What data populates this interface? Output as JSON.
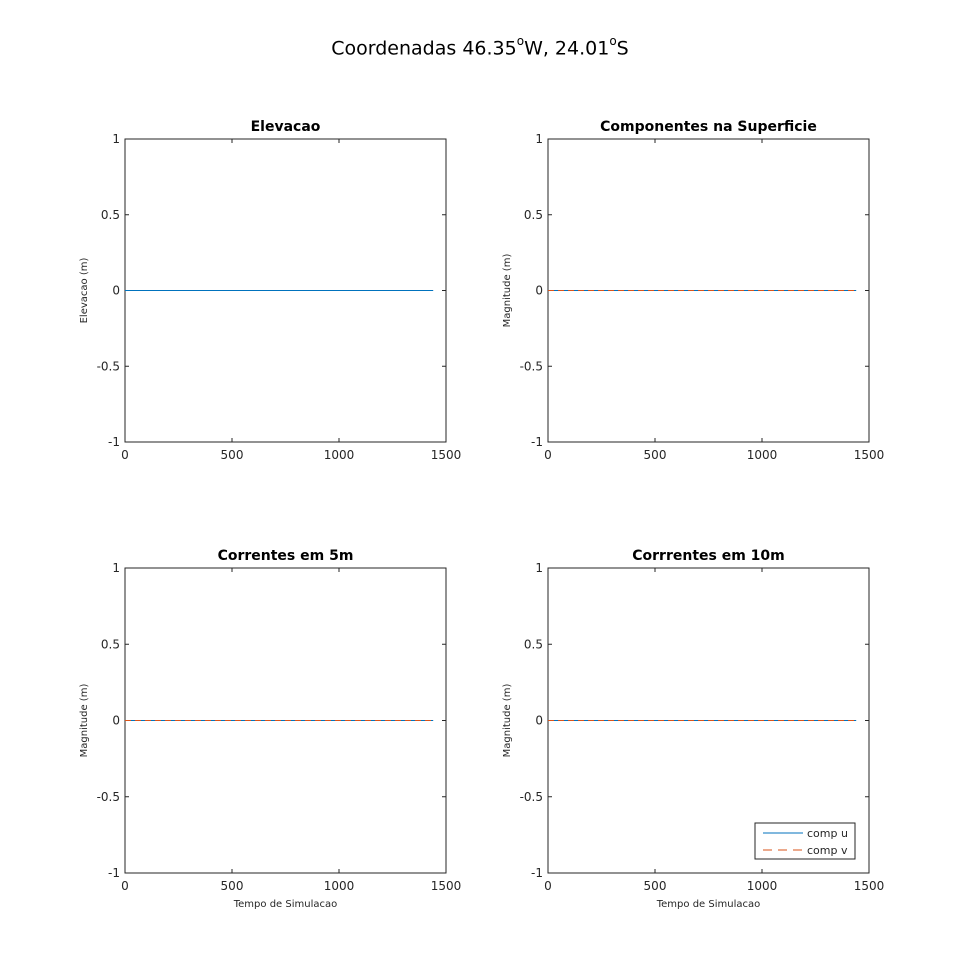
{
  "figure": {
    "title_prefix": "Coordenadas 46.35",
    "title_lon_unit": "W, 24.01",
    "title_lat_unit": "S",
    "title_degree": "o"
  },
  "colors": {
    "series_u": "#0072bd",
    "series_v": "#d95319",
    "axes": "#262626"
  },
  "chart_data": [
    {
      "type": "line",
      "title": "Elevacao",
      "xlabel": "",
      "ylabel": "Elevacao (m)",
      "xlim": [
        0,
        1500
      ],
      "ylim": [
        -1,
        1
      ],
      "xticks": [
        0,
        500,
        1000,
        1500
      ],
      "yticks": [
        -1,
        -0.5,
        0,
        0.5,
        1
      ],
      "series": [
        {
          "style": "solid",
          "color": "#0072bd",
          "x": [
            0,
            1440
          ],
          "y": [
            0,
            0
          ]
        }
      ]
    },
    {
      "type": "line",
      "title": "Componentes na Superficie",
      "xlabel": "",
      "ylabel": "Magnitude (m)",
      "xlim": [
        0,
        1500
      ],
      "ylim": [
        -1,
        1
      ],
      "xticks": [
        0,
        500,
        1000,
        1500
      ],
      "yticks": [
        -1,
        -0.5,
        0,
        0.5,
        1
      ],
      "series": [
        {
          "style": "solid",
          "color": "#0072bd",
          "x": [
            0,
            1440
          ],
          "y": [
            0,
            0
          ]
        },
        {
          "style": "dashed",
          "color": "#d95319",
          "x": [
            0,
            1440
          ],
          "y": [
            0,
            0
          ]
        }
      ]
    },
    {
      "type": "line",
      "title": "Correntes em 5m",
      "xlabel": "Tempo de Simulacao",
      "ylabel": "Magnitude (m)",
      "xlim": [
        0,
        1500
      ],
      "ylim": [
        -1,
        1
      ],
      "xticks": [
        0,
        500,
        1000,
        1500
      ],
      "yticks": [
        -1,
        -0.5,
        0,
        0.5,
        1
      ],
      "series": [
        {
          "style": "solid",
          "color": "#0072bd",
          "x": [
            0,
            1440
          ],
          "y": [
            0,
            0
          ]
        },
        {
          "style": "dashed",
          "color": "#d95319",
          "x": [
            0,
            1440
          ],
          "y": [
            0,
            0
          ]
        }
      ]
    },
    {
      "type": "line",
      "title": "Corrrentes em 10m",
      "xlabel": "Tempo de Simulacao",
      "ylabel": "Magnitude (m)",
      "xlim": [
        0,
        1500
      ],
      "ylim": [
        -1,
        1
      ],
      "xticks": [
        0,
        500,
        1000,
        1500
      ],
      "yticks": [
        -1,
        -0.5,
        0,
        0.5,
        1
      ],
      "legend": {
        "placement": "bottom-right",
        "entries": [
          "comp u",
          "comp v"
        ]
      },
      "series": [
        {
          "name": "comp u",
          "style": "solid",
          "color": "#0072bd",
          "x": [
            0,
            1440
          ],
          "y": [
            0,
            0
          ]
        },
        {
          "name": "comp v",
          "style": "dashed",
          "color": "#d95319",
          "x": [
            0,
            1440
          ],
          "y": [
            0,
            0
          ]
        }
      ]
    }
  ]
}
